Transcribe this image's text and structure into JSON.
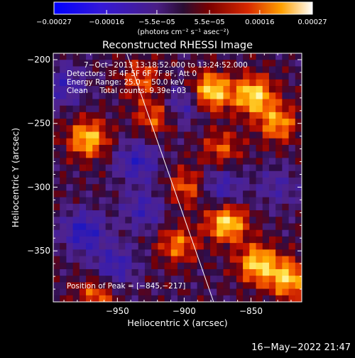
{
  "chart_data": {
    "type": "heatmap",
    "title": "Reconstructed RHESSI Image",
    "xlabel": "Heliocentric X (arcsec)",
    "ylabel": "Heliocentric Y (arcsec)",
    "xlim": [
      -998,
      -812
    ],
    "ylim": [
      -390,
      -195
    ],
    "xticks": [
      -950,
      -900,
      -850
    ],
    "xtick_labels": [
      "−950",
      "−900",
      "−850"
    ],
    "yticks": [
      -200,
      -250,
      -300,
      -350
    ],
    "ytick_labels": [
      "−200",
      "−250",
      "−300",
      "−350"
    ],
    "colorbar": {
      "range": [
        -0.00027,
        0.00027
      ],
      "ticks": [
        -0.00027,
        -0.00016,
        -5.5e-05,
        5.5e-05,
        0.00016,
        0.00027
      ],
      "tick_labels": [
        "−0.00027",
        "−0.00016",
        "−5.5e−05",
        "5.5e−05",
        "0.00016",
        "0.00027"
      ],
      "unit_label": "(photons cm⁻² s⁻¹ asec⁻²)"
    },
    "annotations": [
      "7−Oct−2013 13:18:52.000 to 13:24:52.000",
      "Detectors: 3F 4F 5F 6F 7F 8F, Att 0",
      "Energy Range: 25.0 − 50.0 keV",
      "Clean     Total counts: 9.39e+03"
    ],
    "peak_label": "Position of Peak = [−845,−217]",
    "peak": [
      -845,
      -217
    ],
    "limb_line": [
      [
        -943,
        -195
      ],
      [
        -878,
        -390
      ]
    ],
    "hot_regions": [
      {
        "x": -880,
        "y": -225,
        "amp": 1.0
      },
      {
        "x": -848,
        "y": -228,
        "amp": 0.95
      },
      {
        "x": -830,
        "y": -250,
        "amp": 0.7
      },
      {
        "x": -972,
        "y": -262,
        "amp": 0.85
      },
      {
        "x": -922,
        "y": -245,
        "amp": 0.55
      },
      {
        "x": -868,
        "y": -328,
        "amp": 0.95
      },
      {
        "x": -845,
        "y": -360,
        "amp": 0.9
      },
      {
        "x": -822,
        "y": -372,
        "amp": 0.85
      },
      {
        "x": -898,
        "y": -300,
        "amp": 0.55
      },
      {
        "x": -905,
        "y": -345,
        "amp": 0.6
      },
      {
        "x": -932,
        "y": -215,
        "amp": 0.5
      },
      {
        "x": -872,
        "y": -270,
        "amp": 0.5
      },
      {
        "x": -966,
        "y": -385,
        "amp": 0.55
      }
    ],
    "cold_regions": [
      {
        "x": -975,
        "y": -335,
        "amp": 1.0
      },
      {
        "x": -935,
        "y": -280,
        "amp": 0.85
      },
      {
        "x": -952,
        "y": -362,
        "amp": 0.8
      },
      {
        "x": -900,
        "y": -235,
        "amp": 0.7
      },
      {
        "x": -872,
        "y": -300,
        "amp": 0.75
      },
      {
        "x": -990,
        "y": -220,
        "amp": 0.7
      },
      {
        "x": -930,
        "y": -318,
        "amp": 0.7
      },
      {
        "x": -830,
        "y": -300,
        "amp": 0.5
      }
    ]
  },
  "footer": {
    "timestamp": "16−May−2022 21:47"
  }
}
